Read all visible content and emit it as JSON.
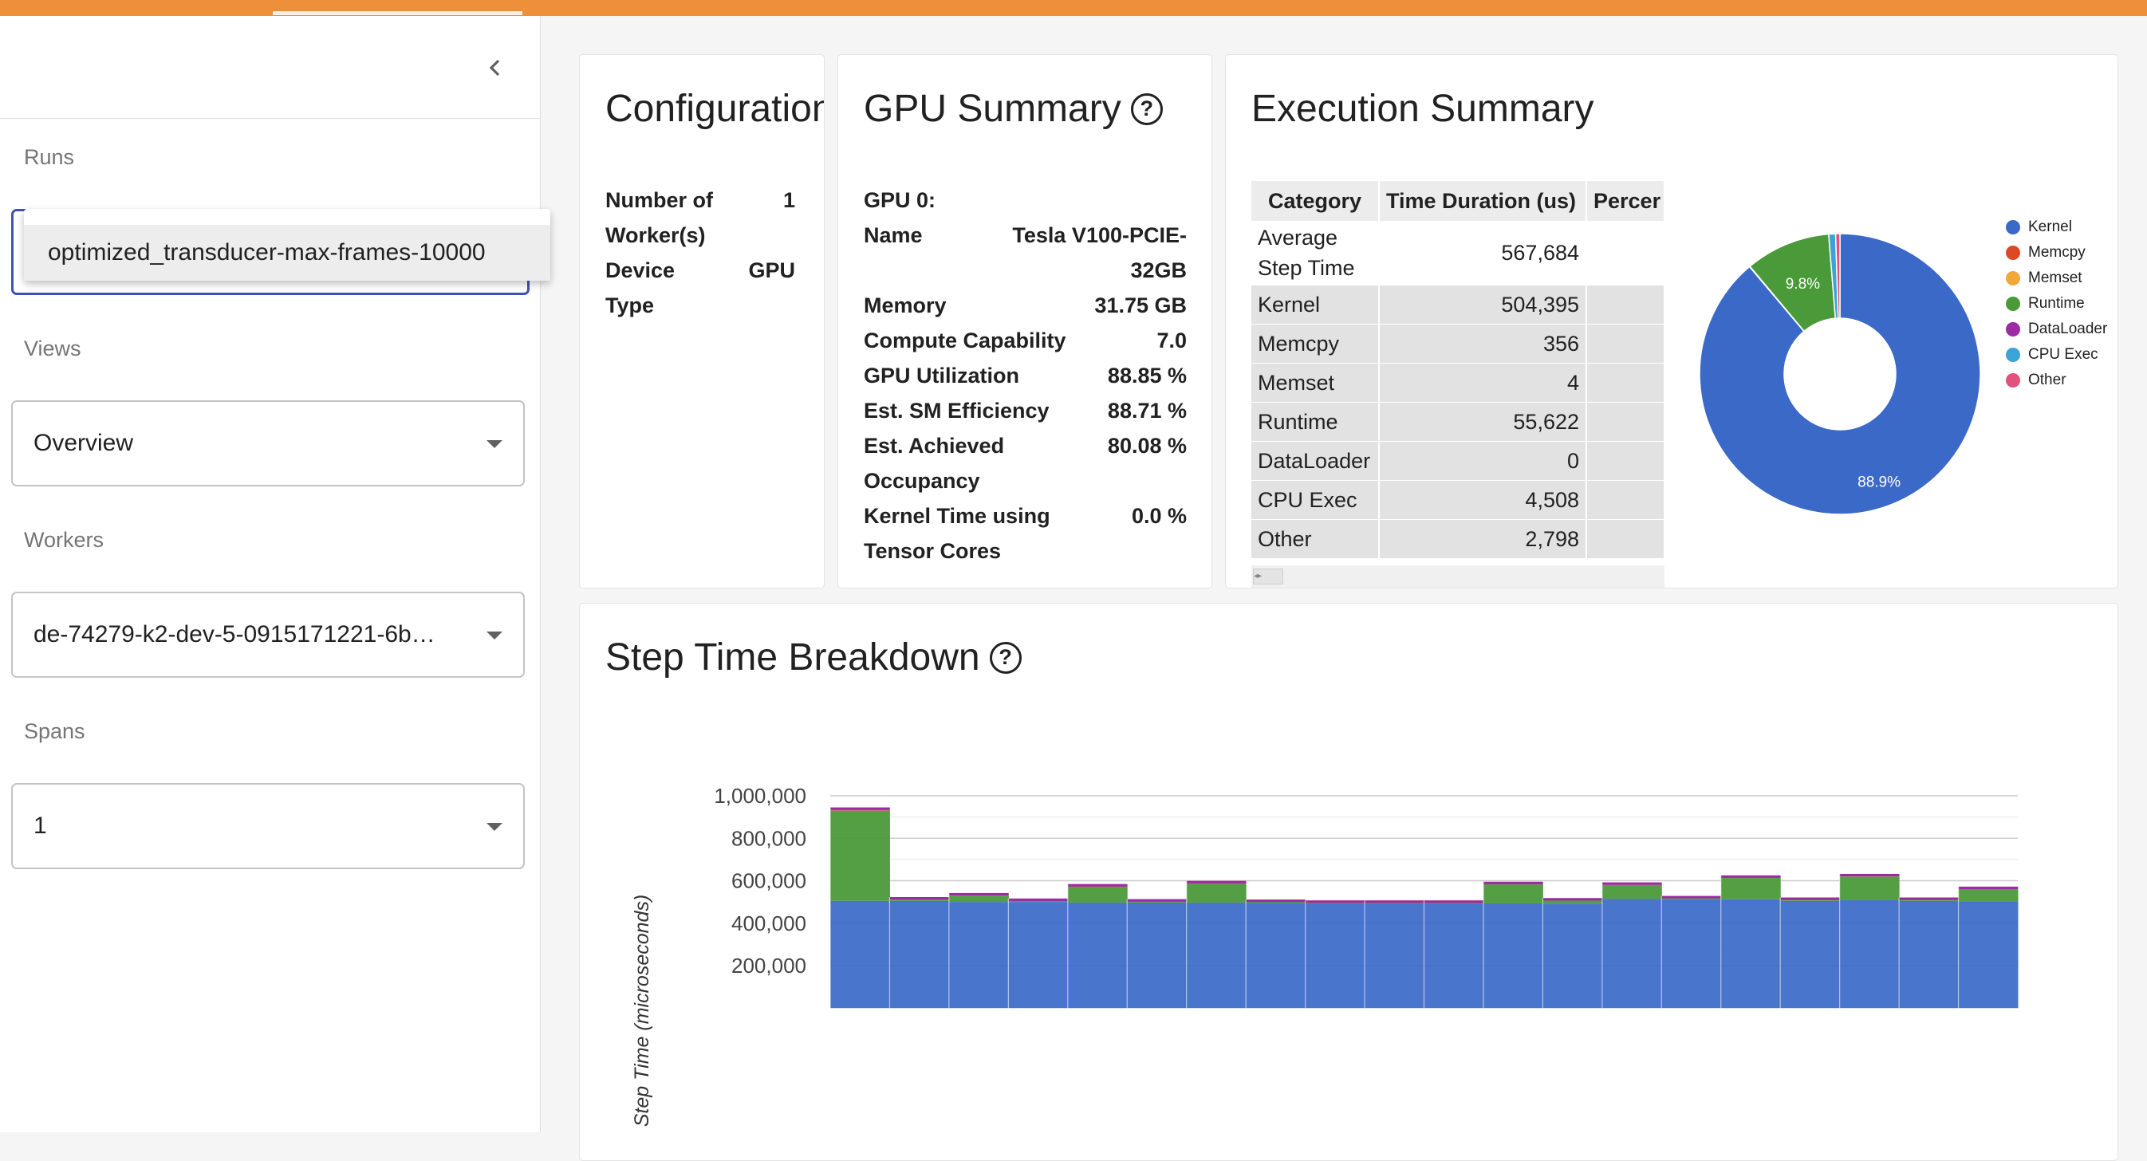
{
  "sidebar": {
    "runs_label": "Runs",
    "runs_value": "optimized_transducer-max-frames-10000",
    "views_label": "Views",
    "views_value": "Overview",
    "workers_label": "Workers",
    "workers_value": "de-74279-k2-dev-5-0915171221-6b…",
    "spans_label": "Spans",
    "spans_value": "1"
  },
  "configuration": {
    "title": "Configuration",
    "rows": [
      {
        "key": "Number of Worker(s)",
        "value": "1"
      },
      {
        "key": "Device Type",
        "value": "GPU"
      }
    ]
  },
  "gpu_summary": {
    "title": "GPU Summary",
    "gpu_label": "GPU 0:",
    "rows": [
      {
        "key": "Name",
        "value": "Tesla V100-PCIE-32GB"
      },
      {
        "key": "Memory",
        "value": "31.75 GB"
      },
      {
        "key": "Compute Capability",
        "value": "7.0"
      },
      {
        "key": "GPU Utilization",
        "value": "88.85 %"
      },
      {
        "key": "Est. SM Efficiency",
        "value": "88.71 %"
      },
      {
        "key": "Est. Achieved Occupancy",
        "value": "80.08 %"
      },
      {
        "key": "Kernel Time using Tensor Cores",
        "value": "0.0 %"
      }
    ]
  },
  "execution_summary": {
    "title": "Execution Summary",
    "headers": [
      "Category",
      "Time Duration (us)",
      "Percer"
    ],
    "rows": [
      {
        "category": "Average Step Time",
        "duration": "567,684"
      },
      {
        "category": "Kernel",
        "duration": "504,395"
      },
      {
        "category": "Memcpy",
        "duration": "356"
      },
      {
        "category": "Memset",
        "duration": "4"
      },
      {
        "category": "Runtime",
        "duration": "55,622"
      },
      {
        "category": "DataLoader",
        "duration": "0"
      },
      {
        "category": "CPU Exec",
        "duration": "4,508"
      },
      {
        "category": "Other",
        "duration": "2,798"
      }
    ],
    "pie_labels": {
      "kernel": "88.9%",
      "runtime": "9.8%"
    }
  },
  "step_time": {
    "title": "Step Time Breakdown",
    "ylabel": "Step Time (microseconds)"
  },
  "colors": {
    "kernel": "#3b69c8",
    "memcpy": "#dc4a25",
    "memset": "#f2a73b",
    "runtime": "#4b9a3a",
    "dataloader": "#9c2aa5",
    "cpu_exec": "#3ba4d6",
    "other": "#e0517c"
  },
  "chart_data": [
    {
      "type": "pie",
      "categories": [
        "Kernel",
        "Memcpy",
        "Memset",
        "Runtime",
        "DataLoader",
        "CPU Exec",
        "Other"
      ],
      "values": [
        504395,
        356,
        4,
        55622,
        0,
        4508,
        2798
      ],
      "legend": "right"
    },
    {
      "type": "area",
      "ylabel": "Step Time (microseconds)",
      "ylim": [
        0,
        1000000
      ],
      "yticks": [
        200000,
        400000,
        600000,
        800000,
        1000000
      ],
      "yticklabels": [
        "200,000",
        "400,000",
        "600,000",
        "800,000",
        "1,000,000"
      ],
      "x": [
        0,
        1,
        2,
        3,
        4,
        5,
        6,
        7,
        8,
        9,
        10,
        11,
        12,
        13,
        14,
        15,
        16,
        17,
        18,
        19
      ],
      "series": [
        {
          "name": "Kernel",
          "values": [
            505000,
            505000,
            500000,
            500000,
            497000,
            497000,
            497000,
            495000,
            493000,
            493000,
            493000,
            493000,
            492000,
            515000,
            512000,
            513000,
            505000,
            508000,
            505000,
            502000
          ]
        },
        {
          "name": "Runtime",
          "values": [
            425000,
            8000,
            30000,
            8000,
            75000,
            8000,
            90000,
            8000,
            7000,
            6000,
            6000,
            90000,
            16000,
            65000,
            8000,
            100000,
            8000,
            112000,
            8000,
            60000
          ]
        },
        {
          "name": "Other",
          "values": [
            15000,
            10000,
            12000,
            8000,
            12000,
            8000,
            12000,
            8000,
            7000,
            8000,
            8000,
            12000,
            10000,
            12000,
            8000,
            12000,
            8000,
            12000,
            8000,
            10000
          ]
        }
      ]
    }
  ]
}
